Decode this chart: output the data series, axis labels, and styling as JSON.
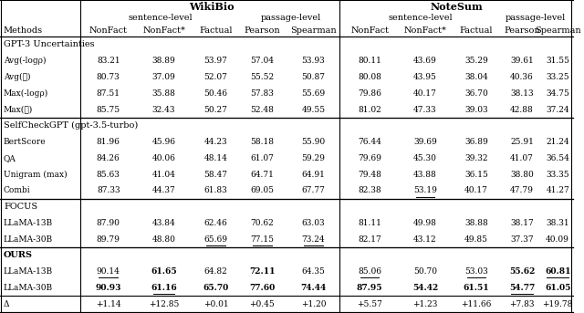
{
  "title_wikibio": "WikiBio",
  "title_notesum": "NoteSum",
  "subtitle_sentence": "sentence-level",
  "subtitle_passage": "passage-level",
  "rows": [
    {
      "method": "Avg(-logρ)",
      "italic_method": true,
      "vals": [
        "83.21",
        "38.89",
        "53.97",
        "57.04",
        "53.93",
        "80.11",
        "43.69",
        "35.29",
        "39.61",
        "31.55"
      ],
      "bold": [],
      "underline": [],
      "section": false
    },
    {
      "method": "Avg(ℋ)",
      "italic_method": true,
      "vals": [
        "80.73",
        "37.09",
        "52.07",
        "55.52",
        "50.87",
        "80.08",
        "43.95",
        "38.04",
        "40.36",
        "33.25"
      ],
      "bold": [],
      "underline": [],
      "section": false
    },
    {
      "method": "Max(-logρ)",
      "italic_method": true,
      "vals": [
        "87.51",
        "35.88",
        "50.46",
        "57.83",
        "55.69",
        "79.86",
        "40.17",
        "36.70",
        "38.13",
        "34.75"
      ],
      "bold": [],
      "underline": [],
      "section": false
    },
    {
      "method": "Max(ℋ)",
      "italic_method": true,
      "vals": [
        "85.75",
        "32.43",
        "50.27",
        "52.48",
        "49.55",
        "81.02",
        "47.33",
        "39.03",
        "42.88",
        "37.24"
      ],
      "bold": [],
      "underline": [],
      "section": false
    },
    {
      "method": "BertScore",
      "italic_method": false,
      "vals": [
        "81.96",
        "45.96",
        "44.23",
        "58.18",
        "55.90",
        "76.44",
        "39.69",
        "36.89",
        "25.91",
        "21.24"
      ],
      "bold": [],
      "underline": [],
      "section": false
    },
    {
      "method": "QA",
      "italic_method": false,
      "vals": [
        "84.26",
        "40.06",
        "48.14",
        "61.07",
        "59.29",
        "79.69",
        "45.30",
        "39.32",
        "41.07",
        "36.54"
      ],
      "bold": [],
      "underline": [],
      "section": false
    },
    {
      "method": "Unigram (max)",
      "italic_method": false,
      "vals": [
        "85.63",
        "41.04",
        "58.47",
        "64.71",
        "64.91",
        "79.48",
        "43.88",
        "36.15",
        "38.80",
        "33.35"
      ],
      "bold": [],
      "underline": [],
      "section": false
    },
    {
      "method": "Combi",
      "italic_method": false,
      "vals": [
        "87.33",
        "44.37",
        "61.83",
        "69.05",
        "67.77",
        "82.38",
        "53.19",
        "40.17",
        "47.79",
        "41.27"
      ],
      "bold": [],
      "underline": [
        6
      ],
      "section": false
    },
    {
      "method": "LLaMA-13B",
      "italic_method": false,
      "vals": [
        "87.90",
        "43.84",
        "62.46",
        "70.62",
        "63.03",
        "81.11",
        "49.98",
        "38.88",
        "38.17",
        "38.31"
      ],
      "bold": [],
      "underline": [],
      "section": false
    },
    {
      "method": "LLaMA-30B",
      "italic_method": false,
      "vals": [
        "89.79",
        "48.80",
        "65.69",
        "77.15",
        "73.24",
        "82.17",
        "43.12",
        "49.85",
        "37.37",
        "40.09"
      ],
      "bold": [],
      "underline": [
        2,
        3,
        4
      ],
      "section": false
    },
    {
      "method": "LLaMA-13B",
      "italic_method": false,
      "vals": [
        "90.14",
        "61.65",
        "64.82",
        "72.11",
        "64.35",
        "85.06",
        "50.70",
        "53.03",
        "55.62",
        "60.81"
      ],
      "bold": [
        1,
        3,
        8,
        9
      ],
      "underline": [
        0,
        5,
        7,
        9
      ],
      "section": false
    },
    {
      "method": "LLaMA-30B",
      "italic_method": false,
      "vals": [
        "90.93",
        "61.16",
        "65.70",
        "77.60",
        "74.44",
        "87.95",
        "54.42",
        "61.51",
        "54.77",
        "61.05"
      ],
      "bold": [
        0,
        1,
        2,
        3,
        4,
        5,
        6,
        7,
        8,
        9
      ],
      "underline": [
        1,
        8
      ],
      "section": false
    },
    {
      "method": "Δ",
      "italic_method": false,
      "vals": [
        "+1.14",
        "+12.85",
        "+0.01",
        "+0.45",
        "+1.20",
        "+5.57",
        "+1.23",
        "+11.66",
        "+7.83",
        "+19.78"
      ],
      "bold": [],
      "underline": [],
      "section": false
    }
  ],
  "sections": [
    {
      "label": "GPT-3 Uncertainties",
      "before_row": 0,
      "bold": false
    },
    {
      "label": "SelfCheckGPT (gpt-3.5-turbo)",
      "before_row": 4,
      "bold": false
    },
    {
      "label": "FOCUS",
      "before_row": 8,
      "bold": false
    },
    {
      "label": "OURS",
      "before_row": 10,
      "bold": true
    }
  ],
  "fs_title": 8.0,
  "fs_sub": 7.0,
  "fs_col": 7.0,
  "fs_cell": 6.5,
  "fs_sec": 7.0
}
